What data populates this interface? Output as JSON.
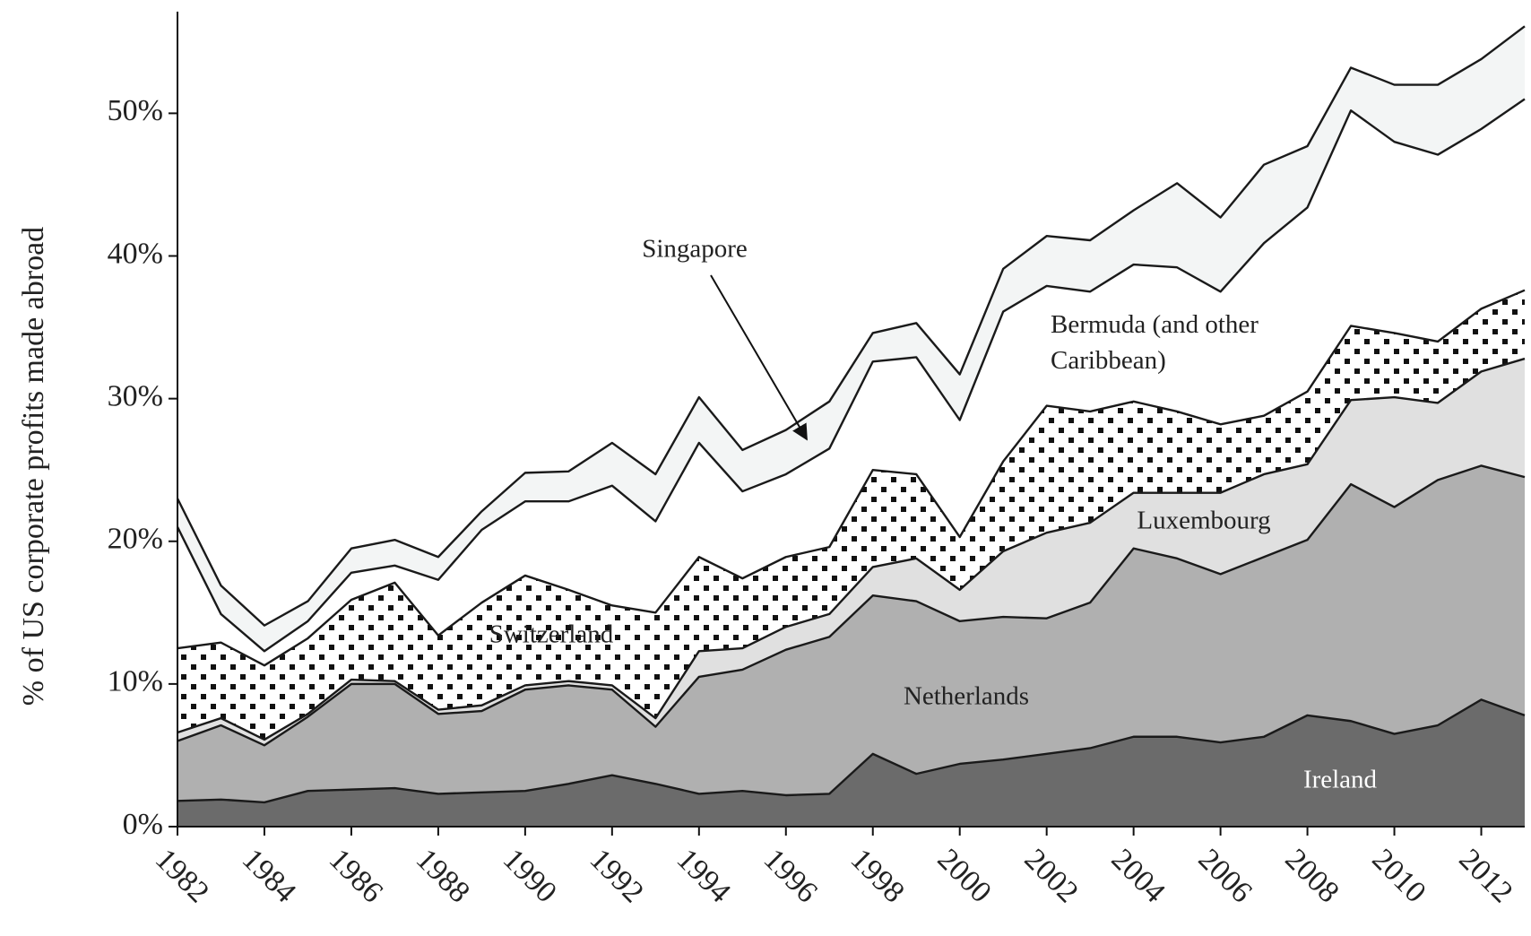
{
  "chart_data": {
    "type": "stacked_area",
    "y_label": "% of US corporate profits made abroad",
    "x": [
      1982,
      1983,
      1984,
      1985,
      1986,
      1987,
      1988,
      1989,
      1990,
      1991,
      1992,
      1993,
      1994,
      1995,
      1996,
      1997,
      1998,
      1999,
      2000,
      2001,
      2002,
      2003,
      2004,
      2005,
      2006,
      2007,
      2008,
      2009,
      2010,
      2011,
      2012,
      2013
    ],
    "xlim": [
      1982,
      2013
    ],
    "xticks": [
      1982,
      1984,
      1986,
      1988,
      1990,
      1992,
      1994,
      1996,
      1998,
      2000,
      2002,
      2004,
      2006,
      2008,
      2010,
      2012
    ],
    "ylim": [
      0,
      57
    ],
    "yticks": [
      {
        "value": 0,
        "label": "0%"
      },
      {
        "value": 10,
        "label": "10%"
      },
      {
        "value": 20,
        "label": "20%"
      },
      {
        "value": 30,
        "label": "30%"
      },
      {
        "value": 40,
        "label": "40%"
      },
      {
        "value": 50,
        "label": "50%"
      }
    ],
    "series": [
      {
        "name": "Ireland",
        "color": "#6b6b6b",
        "values": [
          1.8,
          1.9,
          1.7,
          2.5,
          2.6,
          2.7,
          2.3,
          2.4,
          2.5,
          3.0,
          3.6,
          3.0,
          2.3,
          2.5,
          2.2,
          2.3,
          5.1,
          3.7,
          4.4,
          4.7,
          5.1,
          5.5,
          6.3,
          6.3,
          5.9,
          6.3,
          7.8,
          7.4,
          6.5,
          7.1,
          8.9,
          7.8
        ]
      },
      {
        "name": "Netherlands",
        "color": "#b0b0b0",
        "values": [
          4.2,
          5.2,
          4.0,
          5.2,
          7.4,
          7.3,
          5.6,
          5.7,
          7.1,
          6.9,
          6.0,
          4.0,
          8.2,
          8.5,
          10.2,
          11.0,
          11.1,
          12.1,
          10.0,
          10.0,
          9.5,
          10.2,
          13.2,
          12.5,
          11.8,
          12.6,
          12.3,
          16.6,
          15.9,
          17.2,
          16.4,
          16.7
        ]
      },
      {
        "name": "Luxembourg",
        "color": "#e0e0e0",
        "values": [
          0.6,
          0.5,
          0.4,
          0.2,
          0.3,
          0.2,
          0.3,
          0.4,
          0.3,
          0.3,
          0.3,
          0.6,
          1.8,
          1.5,
          1.6,
          1.6,
          2.0,
          3.0,
          2.2,
          4.6,
          6.0,
          5.6,
          3.9,
          4.6,
          5.7,
          5.8,
          5.3,
          5.9,
          7.7,
          5.4,
          6.6,
          8.3
        ]
      },
      {
        "name": "Switzerland",
        "color": "#ffffff",
        "pattern": "dots",
        "values": [
          5.9,
          5.3,
          5.2,
          5.3,
          5.6,
          6.9,
          5.2,
          7.2,
          7.7,
          6.4,
          5.6,
          7.4,
          6.6,
          4.9,
          4.9,
          4.7,
          6.8,
          5.9,
          3.7,
          6.3,
          8.9,
          7.8,
          6.4,
          5.7,
          4.8,
          4.1,
          5.1,
          5.2,
          4.5,
          4.3,
          4.4,
          4.8
        ]
      },
      {
        "name": "Bermuda (and other Caribbean)",
        "color": "#ffffff",
        "values": [
          8.5,
          2.0,
          1.0,
          1.2,
          1.9,
          1.2,
          3.9,
          5.1,
          5.2,
          6.2,
          8.4,
          6.4,
          8.0,
          6.1,
          5.8,
          6.9,
          7.6,
          8.2,
          8.2,
          10.5,
          8.4,
          8.4,
          9.6,
          10.1,
          9.3,
          12.1,
          12.9,
          15.1,
          13.4,
          13.1,
          12.6,
          13.4
        ]
      },
      {
        "name": "Singapore",
        "color": "#f3f5f5",
        "values": [
          2.0,
          2.0,
          1.8,
          1.4,
          1.7,
          1.8,
          1.6,
          1.3,
          2.0,
          2.1,
          3.0,
          3.3,
          3.2,
          2.9,
          3.1,
          3.3,
          2.0,
          2.4,
          3.2,
          3.0,
          3.5,
          3.6,
          3.8,
          5.9,
          5.2,
          5.5,
          4.3,
          3.0,
          4.0,
          4.9,
          4.9,
          5.1
        ]
      }
    ]
  }
}
